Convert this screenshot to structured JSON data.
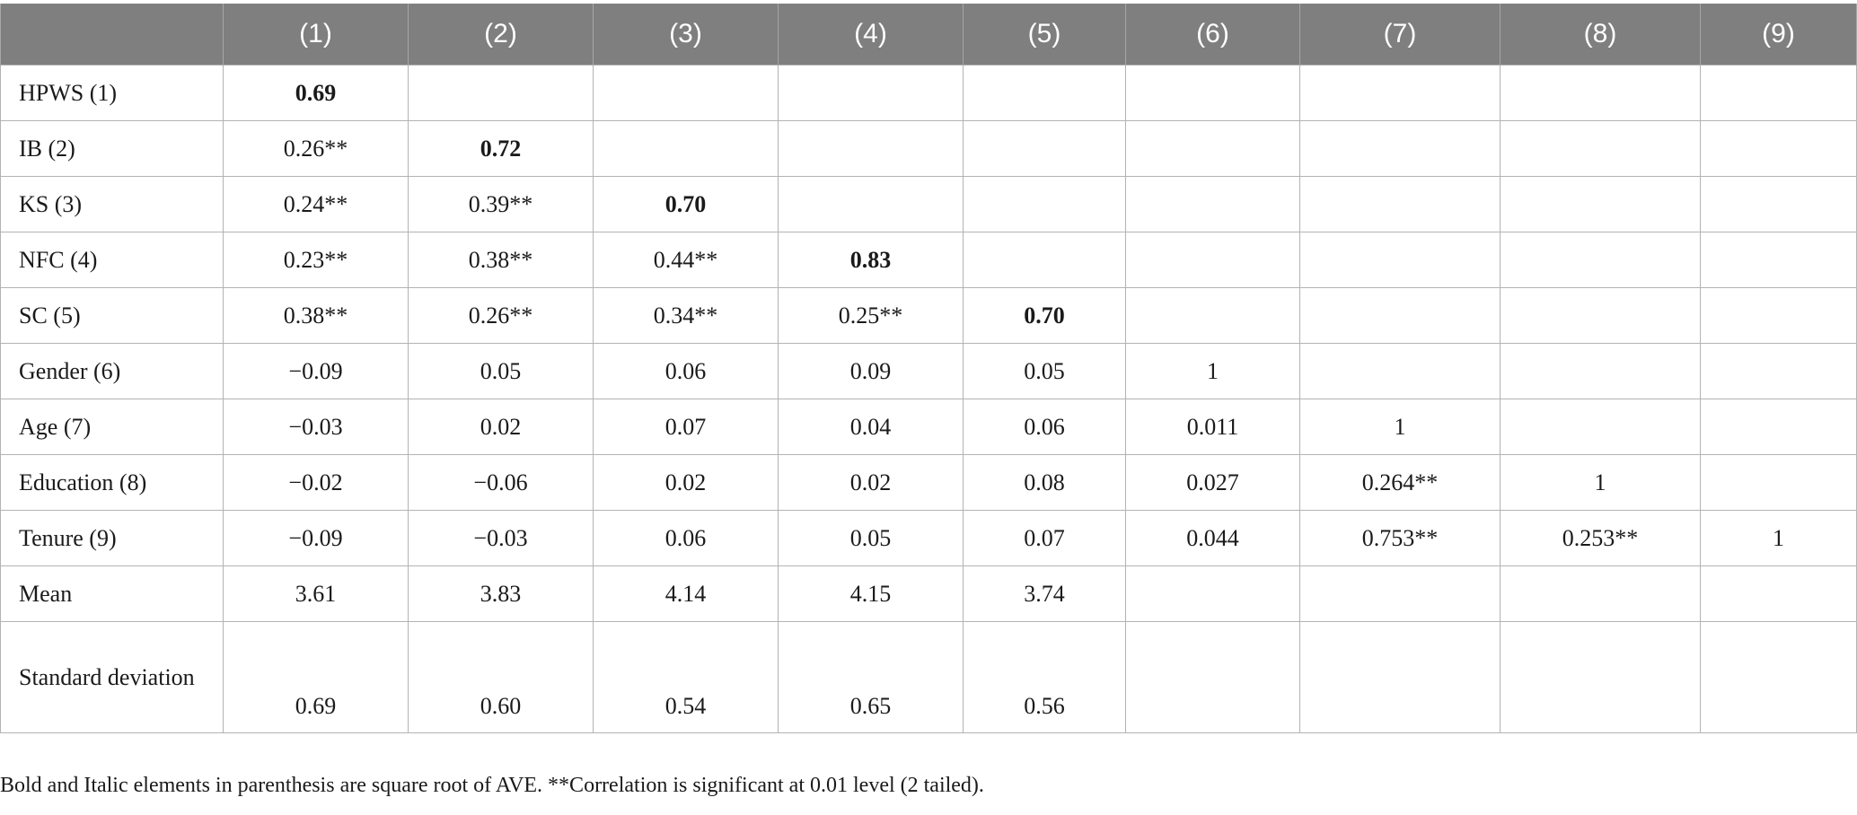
{
  "table": {
    "corner": "",
    "columns": [
      "(1)",
      "(2)",
      "(3)",
      "(4)",
      "(5)",
      "(6)",
      "(7)",
      "(8)",
      "(9)"
    ],
    "rows": [
      {
        "label": "HPWS (1)",
        "cells": [
          "0.69",
          "",
          "",
          "",
          "",
          "",
          "",
          "",
          ""
        ]
      },
      {
        "label": "IB (2)",
        "cells": [
          "0.26**",
          "0.72",
          "",
          "",
          "",
          "",
          "",
          "",
          ""
        ]
      },
      {
        "label": "KS (3)",
        "cells": [
          "0.24**",
          "0.39**",
          "0.70",
          "",
          "",
          "",
          "",
          "",
          ""
        ]
      },
      {
        "label": "NFC (4)",
        "cells": [
          "0.23**",
          "0.38**",
          "0.44**",
          "0.83",
          "",
          "",
          "",
          "",
          ""
        ]
      },
      {
        "label": "SC (5)",
        "cells": [
          "0.38**",
          "0.26**",
          "0.34**",
          "0.25**",
          "0.70",
          "",
          "",
          "",
          ""
        ]
      },
      {
        "label": "Gender (6)",
        "cells": [
          "−0.09",
          "0.05",
          "0.06",
          "0.09",
          "0.05",
          "1",
          "",
          "",
          ""
        ]
      },
      {
        "label": "Age (7)",
        "cells": [
          "−0.03",
          "0.02",
          "0.07",
          "0.04",
          "0.06",
          "0.011",
          "1",
          "",
          ""
        ]
      },
      {
        "label": "Education (8)",
        "cells": [
          "−0.02",
          "−0.06",
          "0.02",
          "0.02",
          "0.08",
          "0.027",
          "0.264**",
          "1",
          ""
        ]
      },
      {
        "label": "Tenure (9)",
        "cells": [
          "−0.09",
          "−0.03",
          "0.06",
          "0.05",
          "0.07",
          "0.044",
          "0.753**",
          "0.253**",
          "1"
        ]
      },
      {
        "label": "Mean",
        "cells": [
          "3.61",
          "3.83",
          "4.14",
          "4.15",
          "3.74",
          "",
          "",
          "",
          ""
        ]
      },
      {
        "label": "Standard deviation",
        "cells": [
          "0.69",
          "0.60",
          "0.54",
          "0.65",
          "0.56",
          "",
          "",
          "",
          ""
        ]
      }
    ]
  },
  "footnote": "Bold and Italic elements in parenthesis are square root of AVE. **Correlation is significant at 0.01 level (2 tailed)."
}
